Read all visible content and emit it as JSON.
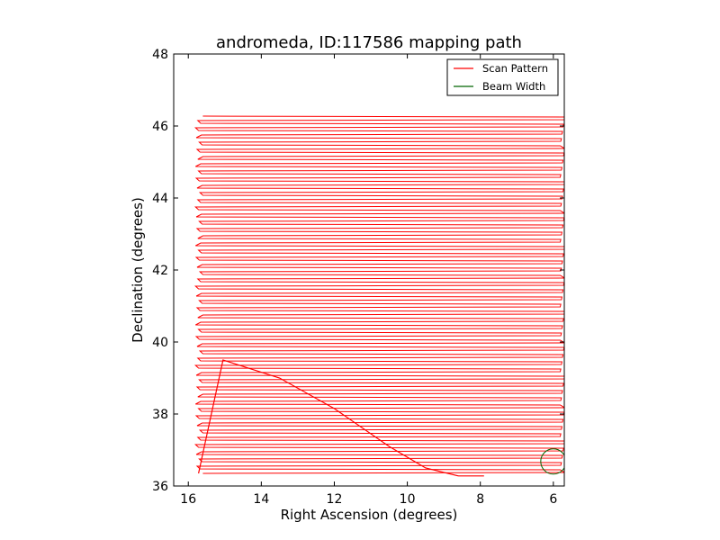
{
  "chart_data": {
    "type": "line",
    "title": "andromeda, ID:117586 mapping path",
    "xlabel": "Right Ascension (degrees)",
    "ylabel": "Declination (degrees)",
    "xlim": [
      16.4,
      5.7
    ],
    "ylim": [
      36,
      48
    ],
    "x_ticks": [
      16,
      14,
      12,
      10,
      8,
      6
    ],
    "y_ticks": [
      36,
      38,
      40,
      42,
      44,
      46
    ],
    "grid": false,
    "legend": {
      "placement": "top-right",
      "entries": [
        "Scan Pattern",
        "Beam Width"
      ]
    },
    "scan_pattern": {
      "color": "#ff0000",
      "ra_west": 15.7,
      "ra_east": 5.75,
      "dec_start": 36.35,
      "dec_end": 46.3,
      "row_spacing": 0.1,
      "slew_path": [
        [
          15.72,
          36.35
        ],
        [
          15.05,
          39.5
        ],
        [
          13.5,
          39.0
        ],
        [
          12.0,
          38.15
        ],
        [
          10.5,
          37.1
        ],
        [
          9.5,
          36.5
        ],
        [
          8.6,
          36.28
        ],
        [
          7.9,
          36.28
        ]
      ]
    },
    "beam_width": {
      "color": "#006400",
      "center_ra": 6.0,
      "center_dec": 36.68,
      "radius_deg": 0.35
    }
  }
}
